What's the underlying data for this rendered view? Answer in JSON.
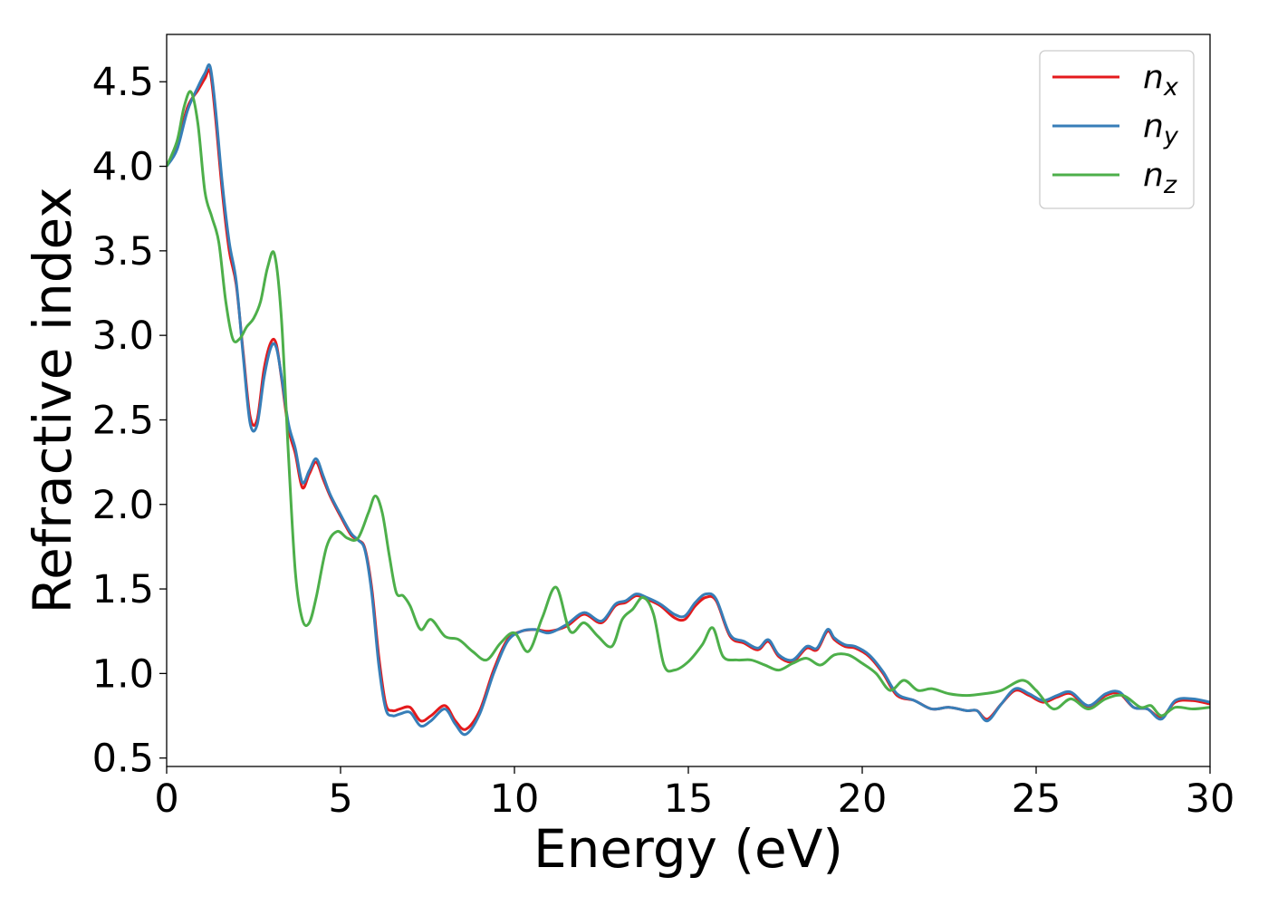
{
  "chart_data": {
    "type": "line",
    "title": "",
    "xlabel": "Energy (eV)",
    "ylabel": "Refractive index",
    "xlim": [
      0,
      30
    ],
    "ylim": [
      0.45,
      4.78
    ],
    "xticks": [
      0,
      5,
      10,
      15,
      20,
      25,
      30
    ],
    "yticks": [
      0.5,
      1.0,
      1.5,
      2.0,
      2.5,
      3.0,
      3.5,
      4.0,
      4.5
    ],
    "grid": false,
    "legend_position": "top-right",
    "series": [
      {
        "name": "n_x",
        "label_main": "n",
        "label_sub": "x",
        "color": "#e41a1c",
        "x": [
          0,
          0.3,
          0.6,
          0.9,
          1.1,
          1.25,
          1.4,
          1.6,
          1.8,
          2.0,
          2.2,
          2.4,
          2.6,
          2.8,
          3.0,
          3.15,
          3.3,
          3.5,
          3.7,
          3.9,
          4.1,
          4.3,
          4.5,
          4.7,
          5.0,
          5.3,
          5.5,
          5.7,
          5.9,
          6.1,
          6.3,
          6.5,
          6.7,
          7.0,
          7.3,
          7.6,
          8.0,
          8.3,
          8.6,
          9.0,
          9.4,
          9.8,
          10.2,
          10.6,
          11.0,
          11.5,
          12.0,
          12.5,
          12.9,
          13.2,
          13.5,
          13.8,
          14.2,
          14.6,
          14.9,
          15.2,
          15.5,
          15.8,
          16.2,
          16.6,
          17.0,
          17.3,
          17.6,
          18.0,
          18.4,
          18.7,
          19.0,
          19.2,
          19.5,
          19.8,
          20.2,
          20.6,
          21.0,
          21.5,
          22.0,
          22.5,
          23.0,
          23.3,
          23.6,
          24.0,
          24.4,
          24.8,
          25.2,
          25.6,
          26.0,
          26.5,
          27.0,
          27.4,
          27.8,
          28.2,
          28.6,
          29.0,
          29.5,
          30.0
        ],
        "values": [
          4.0,
          4.12,
          4.35,
          4.45,
          4.52,
          4.56,
          4.3,
          3.85,
          3.5,
          3.3,
          2.9,
          2.52,
          2.5,
          2.8,
          2.96,
          2.95,
          2.75,
          2.45,
          2.3,
          2.1,
          2.18,
          2.25,
          2.15,
          2.05,
          1.93,
          1.82,
          1.79,
          1.74,
          1.5,
          1.1,
          0.82,
          0.78,
          0.79,
          0.8,
          0.72,
          0.75,
          0.81,
          0.72,
          0.67,
          0.78,
          1.02,
          1.2,
          1.25,
          1.26,
          1.25,
          1.28,
          1.35,
          1.3,
          1.4,
          1.42,
          1.46,
          1.44,
          1.4,
          1.33,
          1.32,
          1.4,
          1.45,
          1.43,
          1.22,
          1.18,
          1.14,
          1.19,
          1.1,
          1.07,
          1.15,
          1.14,
          1.25,
          1.2,
          1.16,
          1.15,
          1.1,
          1.0,
          0.87,
          0.84,
          0.79,
          0.8,
          0.78,
          0.78,
          0.73,
          0.82,
          0.9,
          0.87,
          0.83,
          0.86,
          0.88,
          0.8,
          0.87,
          0.88,
          0.8,
          0.79,
          0.74,
          0.83,
          0.84,
          0.82
        ]
      },
      {
        "name": "n_y",
        "label_main": "n",
        "label_sub": "y",
        "color": "#377eb8",
        "x": [
          0,
          0.3,
          0.6,
          0.9,
          1.1,
          1.25,
          1.4,
          1.6,
          1.8,
          2.0,
          2.2,
          2.4,
          2.6,
          2.8,
          3.0,
          3.15,
          3.3,
          3.5,
          3.7,
          3.9,
          4.1,
          4.3,
          4.5,
          4.7,
          5.0,
          5.3,
          5.5,
          5.7,
          5.9,
          6.1,
          6.3,
          6.5,
          6.7,
          7.0,
          7.3,
          7.6,
          8.0,
          8.3,
          8.6,
          9.0,
          9.4,
          9.8,
          10.2,
          10.6,
          11.0,
          11.5,
          12.0,
          12.5,
          12.9,
          13.2,
          13.5,
          13.8,
          14.2,
          14.6,
          14.9,
          15.2,
          15.5,
          15.8,
          16.2,
          16.6,
          17.0,
          17.3,
          17.6,
          18.0,
          18.4,
          18.7,
          19.0,
          19.2,
          19.5,
          19.8,
          20.2,
          20.6,
          21.0,
          21.5,
          22.0,
          22.5,
          23.0,
          23.3,
          23.6,
          24.0,
          24.4,
          24.8,
          25.2,
          25.6,
          26.0,
          26.5,
          27.0,
          27.4,
          27.8,
          28.2,
          28.6,
          29.0,
          29.5,
          30.0
        ],
        "values": [
          4.0,
          4.1,
          4.33,
          4.47,
          4.55,
          4.59,
          4.35,
          3.9,
          3.55,
          3.32,
          2.88,
          2.48,
          2.47,
          2.75,
          2.93,
          2.93,
          2.76,
          2.48,
          2.33,
          2.13,
          2.2,
          2.27,
          2.17,
          2.06,
          1.94,
          1.83,
          1.79,
          1.73,
          1.47,
          1.05,
          0.79,
          0.75,
          0.76,
          0.77,
          0.69,
          0.72,
          0.79,
          0.7,
          0.64,
          0.76,
          1.0,
          1.19,
          1.25,
          1.26,
          1.24,
          1.29,
          1.36,
          1.31,
          1.41,
          1.43,
          1.47,
          1.45,
          1.41,
          1.35,
          1.34,
          1.42,
          1.47,
          1.44,
          1.23,
          1.19,
          1.15,
          1.2,
          1.11,
          1.08,
          1.16,
          1.15,
          1.26,
          1.21,
          1.17,
          1.16,
          1.11,
          1.01,
          0.88,
          0.84,
          0.79,
          0.8,
          0.78,
          0.78,
          0.72,
          0.82,
          0.91,
          0.88,
          0.84,
          0.87,
          0.89,
          0.81,
          0.88,
          0.89,
          0.8,
          0.79,
          0.73,
          0.84,
          0.85,
          0.83
        ]
      },
      {
        "name": "n_z",
        "label_main": "n",
        "label_sub": "z",
        "color": "#4daf4a",
        "x": [
          0,
          0.3,
          0.5,
          0.7,
          0.9,
          1.1,
          1.3,
          1.5,
          1.7,
          1.9,
          2.1,
          2.3,
          2.5,
          2.7,
          2.9,
          3.1,
          3.3,
          3.5,
          3.7,
          3.9,
          4.1,
          4.3,
          4.6,
          4.9,
          5.2,
          5.5,
          5.8,
          6.0,
          6.2,
          6.4,
          6.6,
          6.8,
          7.0,
          7.3,
          7.6,
          8.0,
          8.4,
          8.8,
          9.2,
          9.6,
          10.0,
          10.4,
          10.8,
          11.2,
          11.6,
          12.0,
          12.4,
          12.8,
          13.1,
          13.4,
          13.7,
          14.0,
          14.3,
          14.6,
          15.0,
          15.4,
          15.7,
          16.0,
          16.4,
          16.8,
          17.2,
          17.6,
          18.0,
          18.4,
          18.8,
          19.2,
          19.6,
          20.0,
          20.4,
          20.8,
          21.2,
          21.6,
          22.0,
          22.5,
          23.0,
          23.5,
          24.0,
          24.6,
          25.0,
          25.5,
          26.0,
          26.5,
          27.0,
          27.5,
          28.0,
          28.3,
          28.6,
          29.0,
          29.5,
          30.0
        ],
        "values": [
          4.0,
          4.15,
          4.35,
          4.44,
          4.25,
          3.85,
          3.7,
          3.55,
          3.2,
          2.98,
          2.98,
          3.05,
          3.1,
          3.2,
          3.4,
          3.48,
          3.1,
          2.3,
          1.6,
          1.32,
          1.3,
          1.45,
          1.75,
          1.84,
          1.8,
          1.8,
          1.95,
          2.05,
          1.95,
          1.7,
          1.48,
          1.46,
          1.4,
          1.26,
          1.32,
          1.22,
          1.2,
          1.13,
          1.08,
          1.18,
          1.24,
          1.13,
          1.33,
          1.51,
          1.25,
          1.3,
          1.22,
          1.16,
          1.32,
          1.38,
          1.45,
          1.35,
          1.05,
          1.02,
          1.07,
          1.17,
          1.27,
          1.1,
          1.08,
          1.08,
          1.05,
          1.02,
          1.06,
          1.09,
          1.05,
          1.11,
          1.11,
          1.06,
          1.0,
          0.9,
          0.96,
          0.9,
          0.91,
          0.88,
          0.87,
          0.88,
          0.9,
          0.96,
          0.9,
          0.79,
          0.85,
          0.79,
          0.85,
          0.87,
          0.8,
          0.81,
          0.75,
          0.8,
          0.79,
          0.8
        ]
      }
    ]
  }
}
